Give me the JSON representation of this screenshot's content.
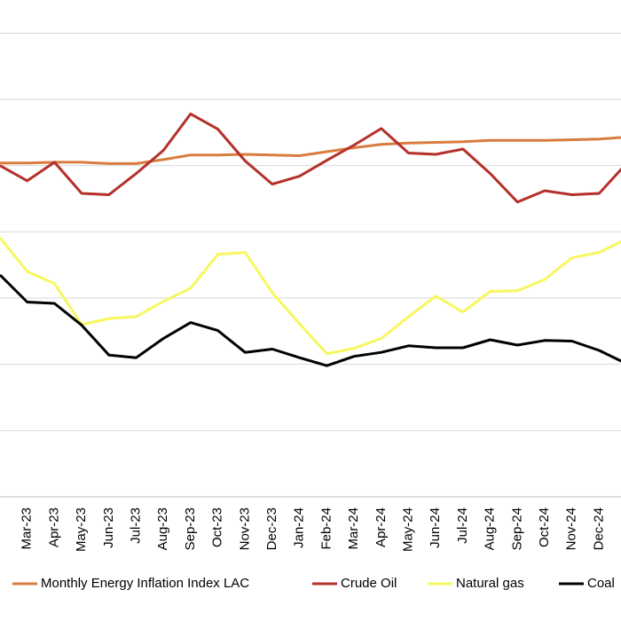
{
  "chart_data": {
    "type": "line",
    "categories": [
      null,
      "Mar-23",
      "Apr-23",
      "May-23",
      "Jun-23",
      "Jul-23",
      "Aug-23",
      "Sep-23",
      "Oct-23",
      "Nov-23",
      "Dec-23",
      "Jan-24",
      "Feb-24",
      "Mar-24",
      "Apr-24",
      "May-24",
      "Jun-24",
      "Jul-24",
      "Aug-24",
      "Sep-24",
      "Oct-24",
      "Nov-24",
      "Dec-24",
      null
    ],
    "series": [
      {
        "name": "Monthly Energy Inflation Index LAC",
        "color": "#d97c3e",
        "values": [
          5.04,
          5.04,
          5.05,
          5.05,
          5.03,
          5.03,
          5.09,
          5.16,
          5.16,
          5.17,
          5.16,
          5.15,
          5.21,
          5.27,
          5.32,
          5.34,
          5.35,
          5.36,
          5.38,
          5.38,
          5.38,
          5.39,
          5.4,
          5.43
        ]
      },
      {
        "name": "Crude Oil",
        "color": "#b5302a",
        "values": [
          5.0,
          4.77,
          5.05,
          4.58,
          4.56,
          4.88,
          5.23,
          5.78,
          5.55,
          5.07,
          4.72,
          4.84,
          5.08,
          5.31,
          5.56,
          5.19,
          5.17,
          5.25,
          4.88,
          4.45,
          4.62,
          4.56,
          4.58,
          5.03
        ]
      },
      {
        "name": "Natural gas",
        "color": "#f7f760",
        "values": [
          3.91,
          3.4,
          3.22,
          2.6,
          2.69,
          2.72,
          2.95,
          3.15,
          3.66,
          3.69,
          3.08,
          2.61,
          2.16,
          2.24,
          2.39,
          2.72,
          3.03,
          2.79,
          3.1,
          3.11,
          3.28,
          3.61,
          3.69,
          3.89
        ]
      },
      {
        "name": "Coal",
        "color": "#000000",
        "values": [
          3.35,
          2.94,
          2.92,
          2.59,
          2.14,
          2.1,
          2.39,
          2.63,
          2.51,
          2.18,
          2.23,
          2.1,
          1.98,
          2.12,
          2.18,
          2.28,
          2.25,
          2.25,
          2.37,
          2.29,
          2.36,
          2.35,
          2.21,
          2.01
        ]
      }
    ],
    "ylim": [
      0,
      7.5
    ],
    "yticks": [
      0,
      1,
      2,
      3,
      4,
      5,
      6,
      7
    ],
    "grid": true,
    "legend": "bottom"
  }
}
